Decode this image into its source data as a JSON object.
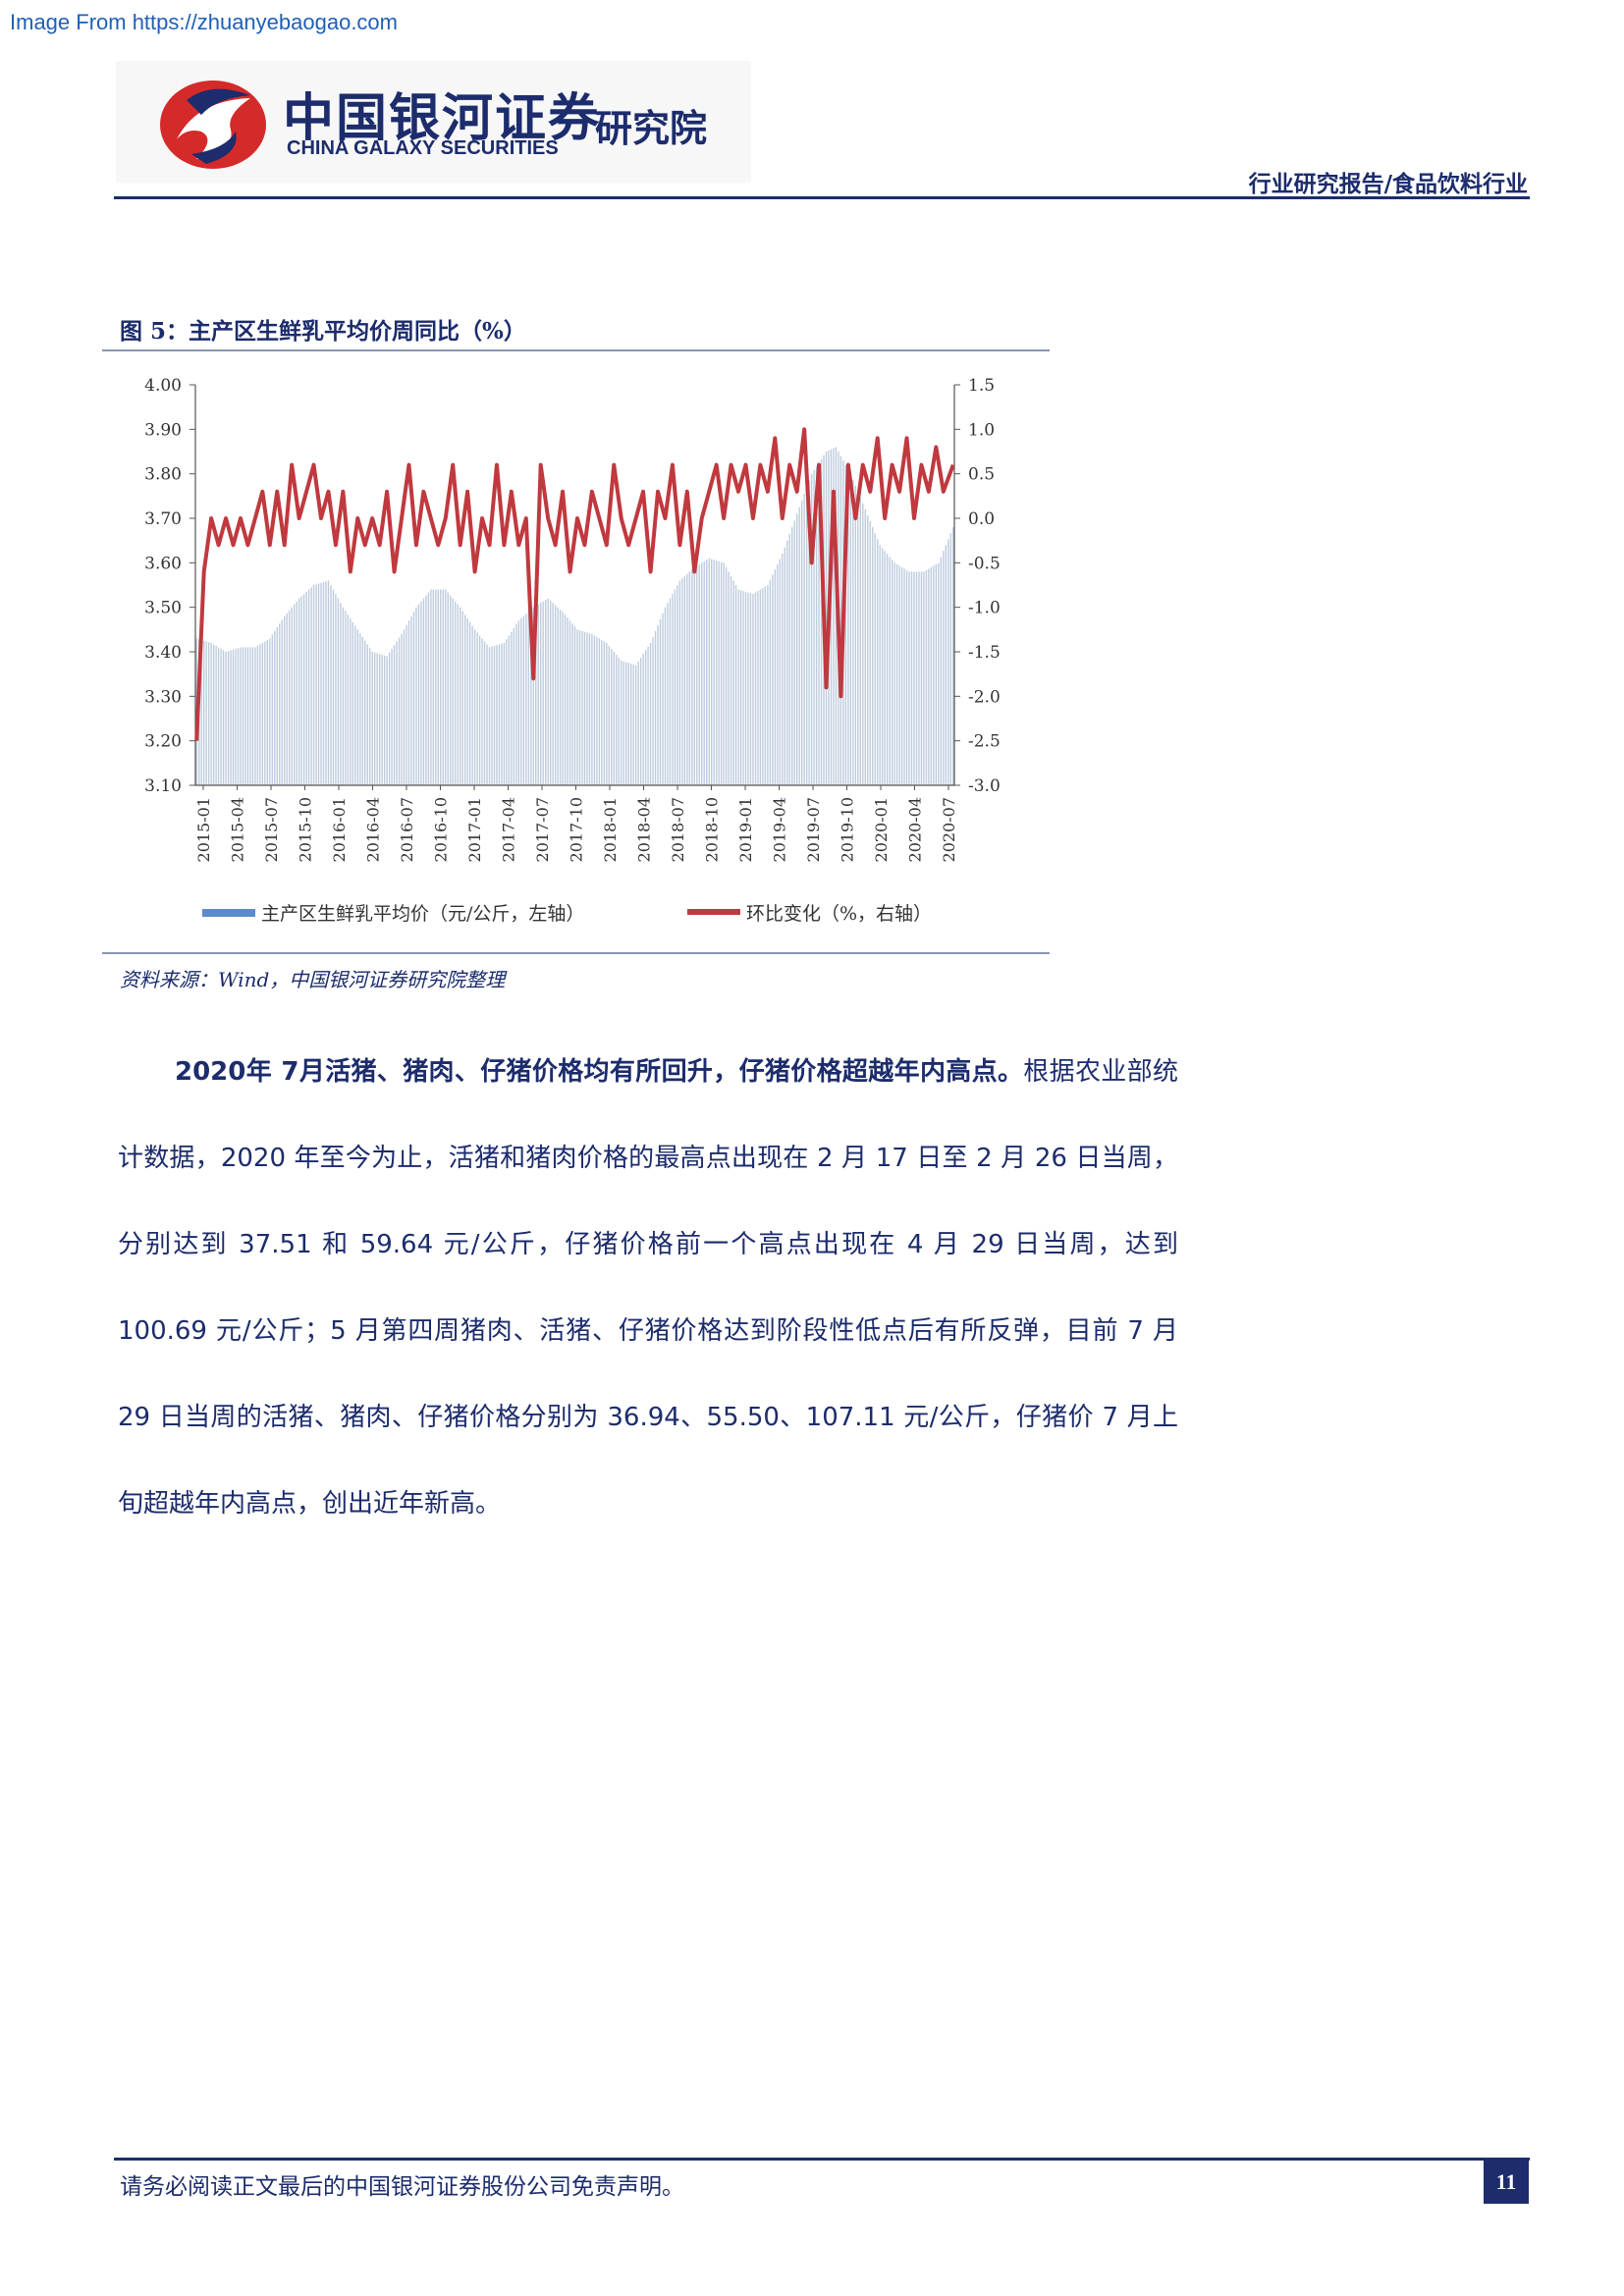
{
  "source_url": "Image From https://zhuanyebaogao.com",
  "logo": {
    "cn": "中国银河证券",
    "en": "CHINA GALAXY SECURITIES",
    "institute": "研究院",
    "colors": {
      "red": "#d42a2a",
      "navy": "#1c2c6c"
    }
  },
  "header": {
    "report_type": "行业研究报告/食品饮料行业"
  },
  "figure": {
    "title": "图 5：主产区生鲜乳平均价周同比（%）",
    "source": "资料来源：Wind，中国银河证券研究院整理"
  },
  "chart_data": {
    "type": "bar+line",
    "left_axis": {
      "min": 3.1,
      "max": 4.0,
      "ticks": [
        "4.00",
        "3.90",
        "3.80",
        "3.70",
        "3.60",
        "3.50",
        "3.40",
        "3.30",
        "3.20",
        "3.10"
      ]
    },
    "right_axis": {
      "min": -3.0,
      "max": 1.5,
      "ticks": [
        "1.5",
        "1.0",
        "0.5",
        "0.0",
        "-0.5",
        "-1.0",
        "-1.5",
        "-2.0",
        "-2.5",
        "-3.0"
      ]
    },
    "x_ticks": [
      "2015-01",
      "2015-04",
      "2015-07",
      "2015-10",
      "2016-01",
      "2016-04",
      "2016-07",
      "2016-10",
      "2017-01",
      "2017-04",
      "2017-07",
      "2017-10",
      "2018-01",
      "2018-04",
      "2018-07",
      "2018-10",
      "2019-01",
      "2019-04",
      "2019-07",
      "2019-10",
      "2020-01",
      "2020-04",
      "2020-07"
    ],
    "series": [
      {
        "name": "主产区生鲜乳平均价（元/公斤，左轴）",
        "axis": "left",
        "kind": "bar",
        "color": "#bccbdd",
        "legend_color": "#5b8bc9",
        "keypoints": [
          [
            0,
            3.43
          ],
          [
            6,
            3.42
          ],
          [
            12,
            3.4
          ],
          [
            18,
            3.41
          ],
          [
            24,
            3.41
          ],
          [
            30,
            3.43
          ],
          [
            36,
            3.48
          ],
          [
            42,
            3.52
          ],
          [
            48,
            3.55
          ],
          [
            54,
            3.56
          ],
          [
            60,
            3.5
          ],
          [
            66,
            3.45
          ],
          [
            72,
            3.4
          ],
          [
            78,
            3.39
          ],
          [
            84,
            3.44
          ],
          [
            90,
            3.5
          ],
          [
            96,
            3.54
          ],
          [
            102,
            3.54
          ],
          [
            108,
            3.5
          ],
          [
            114,
            3.45
          ],
          [
            120,
            3.41
          ],
          [
            126,
            3.42
          ],
          [
            132,
            3.47
          ],
          [
            138,
            3.5
          ],
          [
            144,
            3.52
          ],
          [
            150,
            3.49
          ],
          [
            156,
            3.45
          ],
          [
            162,
            3.44
          ],
          [
            168,
            3.42
          ],
          [
            174,
            3.38
          ],
          [
            180,
            3.37
          ],
          [
            186,
            3.42
          ],
          [
            192,
            3.5
          ],
          [
            198,
            3.56
          ],
          [
            204,
            3.59
          ],
          [
            210,
            3.61
          ],
          [
            216,
            3.6
          ],
          [
            222,
            3.54
          ],
          [
            228,
            3.53
          ],
          [
            234,
            3.55
          ],
          [
            240,
            3.62
          ],
          [
            246,
            3.71
          ],
          [
            252,
            3.8
          ],
          [
            258,
            3.85
          ],
          [
            262,
            3.86
          ],
          [
            268,
            3.8
          ],
          [
            274,
            3.72
          ],
          [
            280,
            3.64
          ],
          [
            286,
            3.6
          ],
          [
            292,
            3.58
          ],
          [
            298,
            3.58
          ],
          [
            304,
            3.6
          ],
          [
            310,
            3.68
          ]
        ]
      },
      {
        "name": "环比变化（%，右轴）",
        "axis": "right",
        "kind": "line",
        "color": "#c0393e",
        "keypoints": [
          [
            0,
            -2.5
          ],
          [
            3,
            -0.6
          ],
          [
            6,
            0.0
          ],
          [
            9,
            -0.3
          ],
          [
            12,
            0.0
          ],
          [
            15,
            -0.3
          ],
          [
            18,
            0.0
          ],
          [
            21,
            -0.3
          ],
          [
            24,
            0.0
          ],
          [
            27,
            0.3
          ],
          [
            30,
            -0.3
          ],
          [
            33,
            0.3
          ],
          [
            36,
            -0.3
          ],
          [
            39,
            0.6
          ],
          [
            42,
            0.0
          ],
          [
            45,
            0.3
          ],
          [
            48,
            0.6
          ],
          [
            51,
            0.0
          ],
          [
            54,
            0.3
          ],
          [
            57,
            -0.3
          ],
          [
            60,
            0.3
          ],
          [
            63,
            -0.6
          ],
          [
            66,
            0.0
          ],
          [
            69,
            -0.3
          ],
          [
            72,
            0.0
          ],
          [
            75,
            -0.3
          ],
          [
            78,
            0.3
          ],
          [
            81,
            -0.6
          ],
          [
            84,
            0.0
          ],
          [
            87,
            0.6
          ],
          [
            90,
            -0.3
          ],
          [
            93,
            0.3
          ],
          [
            96,
            0.0
          ],
          [
            99,
            -0.3
          ],
          [
            102,
            0.0
          ],
          [
            105,
            0.6
          ],
          [
            108,
            -0.3
          ],
          [
            111,
            0.3
          ],
          [
            114,
            -0.6
          ],
          [
            117,
            0.0
          ],
          [
            120,
            -0.3
          ],
          [
            123,
            0.6
          ],
          [
            126,
            -0.3
          ],
          [
            129,
            0.3
          ],
          [
            132,
            -0.3
          ],
          [
            135,
            0.0
          ],
          [
            138,
            -1.8
          ],
          [
            141,
            0.6
          ],
          [
            144,
            0.0
          ],
          [
            147,
            -0.3
          ],
          [
            150,
            0.3
          ],
          [
            153,
            -0.6
          ],
          [
            156,
            0.0
          ],
          [
            159,
            -0.3
          ],
          [
            162,
            0.3
          ],
          [
            165,
            0.0
          ],
          [
            168,
            -0.3
          ],
          [
            171,
            0.6
          ],
          [
            174,
            0.0
          ],
          [
            177,
            -0.3
          ],
          [
            180,
            0.0
          ],
          [
            183,
            0.3
          ],
          [
            186,
            -0.6
          ],
          [
            189,
            0.3
          ],
          [
            192,
            0.0
          ],
          [
            195,
            0.6
          ],
          [
            198,
            -0.3
          ],
          [
            201,
            0.3
          ],
          [
            204,
            -0.6
          ],
          [
            207,
            0.0
          ],
          [
            210,
            0.3
          ],
          [
            213,
            0.6
          ],
          [
            216,
            0.0
          ],
          [
            219,
            0.6
          ],
          [
            222,
            0.3
          ],
          [
            225,
            0.6
          ],
          [
            228,
            0.0
          ],
          [
            231,
            0.6
          ],
          [
            234,
            0.3
          ],
          [
            237,
            0.9
          ],
          [
            240,
            0.0
          ],
          [
            243,
            0.6
          ],
          [
            246,
            0.3
          ],
          [
            249,
            1.0
          ],
          [
            252,
            -0.5
          ],
          [
            255,
            0.6
          ],
          [
            258,
            -1.9
          ],
          [
            261,
            0.3
          ],
          [
            264,
            -2.0
          ],
          [
            267,
            0.6
          ],
          [
            270,
            0.0
          ],
          [
            273,
            0.6
          ],
          [
            276,
            0.3
          ],
          [
            279,
            0.9
          ],
          [
            282,
            0.0
          ],
          [
            285,
            0.6
          ],
          [
            288,
            0.3
          ],
          [
            291,
            0.9
          ],
          [
            294,
            0.0
          ],
          [
            297,
            0.6
          ],
          [
            300,
            0.3
          ],
          [
            303,
            0.8
          ],
          [
            306,
            0.3
          ],
          [
            310,
            0.6
          ]
        ]
      }
    ],
    "legend_placement": "bottom"
  },
  "body": {
    "lead_bold": "2020年 7月活猪、猪肉、仔猪价格均有所回升，仔猪价格超越年内高点。",
    "text": "根据农业部统计数据，2020 年至今为止，活猪和猪肉价格的最高点出现在 2 月 17 日至 2 月 26 日当周，分别达到 37.51 和 59.64 元/公斤，仔猪价格前一个高点出现在 4 月 29 日当周，达到 100.69 元/公斤；5 月第四周猪肉、活猪、仔猪价格达到阶段性低点后有所反弹，目前 7 月 29 日当周的活猪、猪肉、仔猪价格分别为 36.94、55.50、107.11 元/公斤，仔猪价 7 月上旬超越年内高点，创出近年新高。"
  },
  "footer": {
    "disclaimer": "请务必阅读正文最后的中国银河证券股份公司免责声明。",
    "page_number": "11"
  }
}
